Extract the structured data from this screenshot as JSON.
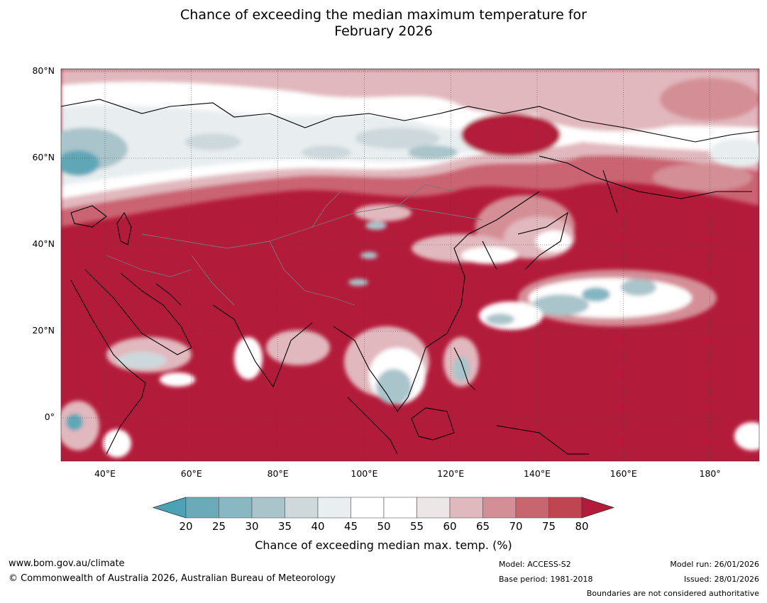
{
  "title": {
    "line1": "Chance of exceeding the median maximum temperature for",
    "line2": "February 2026"
  },
  "map": {
    "lat_labels": [
      "80°N",
      "60°N",
      "40°N",
      "20°N",
      "0°"
    ],
    "lon_labels": [
      "40°E",
      "60°E",
      "80°E",
      "100°E",
      "120°E",
      "140°E",
      "160°E",
      "180°"
    ],
    "colors": {
      "deep_red": "#b31b3a",
      "red_75": "#c1434f",
      "red_70": "#ca6472",
      "red_65": "#d48e96",
      "red_60": "#e1b8bd",
      "neutral": "#ffffff",
      "blue_40": "#e8eef0",
      "blue_35": "#cdd8dc",
      "blue_30": "#a9c4ca",
      "blue_25": "#83b6c2",
      "blue_20": "#5fa7b7",
      "teal": "#4aa3b5"
    }
  },
  "colorbar": {
    "ticks": [
      "20",
      "25",
      "30",
      "35",
      "40",
      "45",
      "50",
      "55",
      "60",
      "65",
      "70",
      "75",
      "80"
    ],
    "colors": [
      "#6aaab9",
      "#89b8c3",
      "#a9c4ca",
      "#cfd9dc",
      "#e9eef0",
      "#ffffff",
      "#ffffff",
      "#ece6e7",
      "#dfb9bd",
      "#d48e96",
      "#c8666f",
      "#bf4551"
    ],
    "under_color": "#4aa3b5",
    "over_color": "#b31b3a",
    "label": "Chance of exceeding median max. temp. (%)"
  },
  "footer": {
    "website": "www.bom.gov.au/climate",
    "copyright": "© Commonwealth of Australia 2026, Australian Bureau of Meteorology",
    "model": "Model: ACCESS-S2",
    "base_period": "Base period: 1981-2018",
    "model_run": "Model run: 26/01/2026",
    "issued": "Issued: 28/01/2026",
    "disclaimer": "Boundaries are not considered authoritative"
  }
}
